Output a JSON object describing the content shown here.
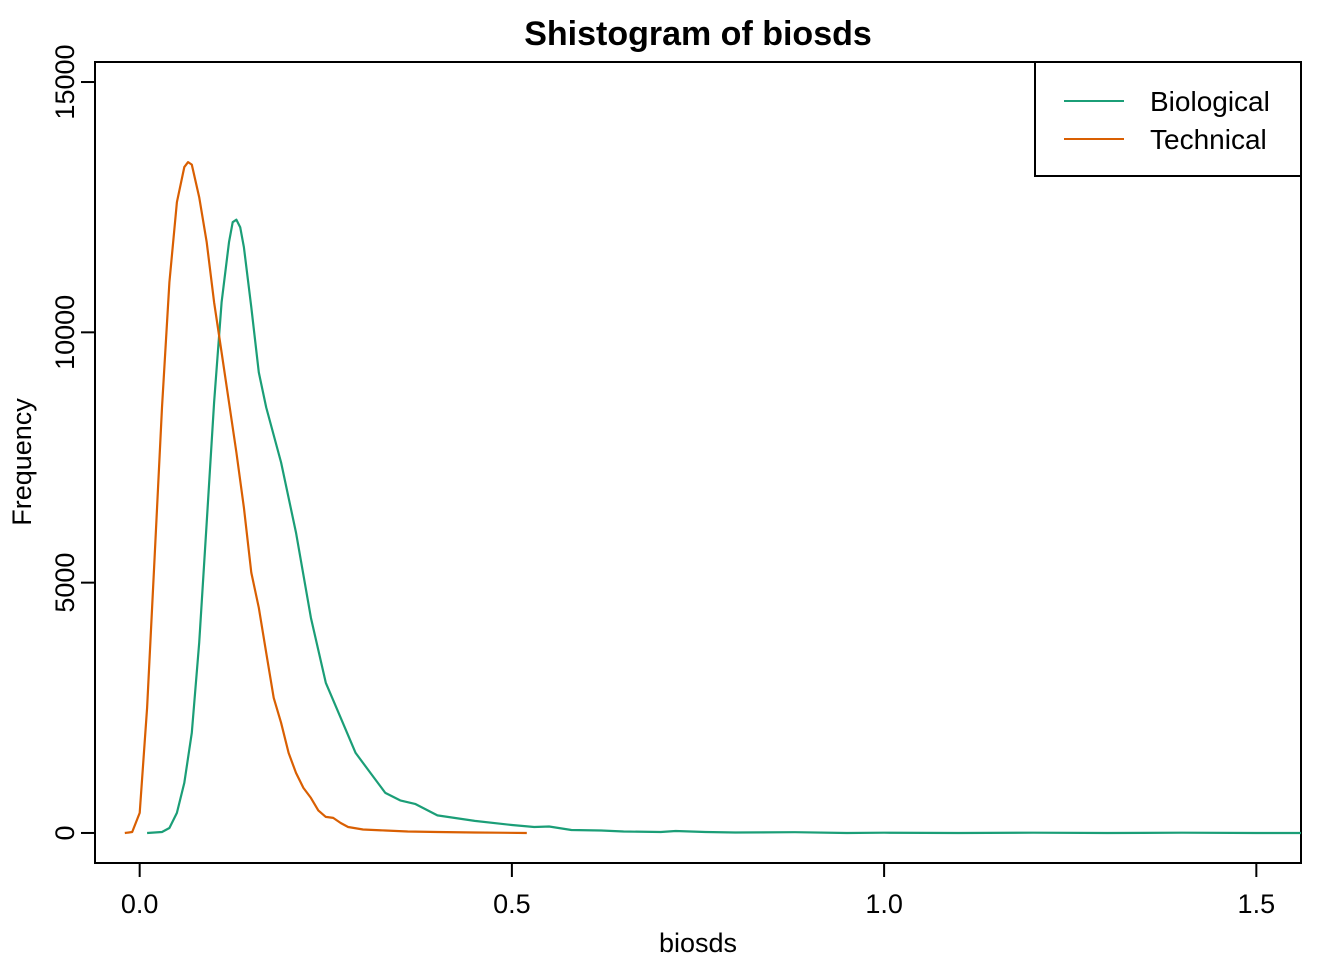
{
  "chart_data": {
    "type": "line",
    "title": "Shistogram of biosds",
    "xlabel": "biosds",
    "ylabel": "Frequency",
    "xlim": [
      -0.06,
      1.56
    ],
    "ylim": [
      -600,
      15400
    ],
    "x_ticks": [
      0.0,
      0.5,
      1.0,
      1.5
    ],
    "x_tick_labels": [
      "0.0",
      "0.5",
      "1.0",
      "1.5"
    ],
    "y_ticks": [
      0,
      5000,
      10000,
      15000
    ],
    "y_tick_labels": [
      "0",
      "5000",
      "10000",
      "15000"
    ],
    "grid": false,
    "legend": {
      "position": "top-right",
      "entries": [
        "Biological",
        "Technical"
      ]
    },
    "series": [
      {
        "name": "Biological",
        "color": "#1b9e77",
        "points": [
          [
            0.01,
            0
          ],
          [
            0.03,
            20
          ],
          [
            0.04,
            100
          ],
          [
            0.05,
            400
          ],
          [
            0.06,
            1000
          ],
          [
            0.07,
            2000
          ],
          [
            0.08,
            3800
          ],
          [
            0.09,
            6200
          ],
          [
            0.1,
            8600
          ],
          [
            0.11,
            10600
          ],
          [
            0.12,
            11800
          ],
          [
            0.125,
            12200
          ],
          [
            0.13,
            12250
          ],
          [
            0.135,
            12100
          ],
          [
            0.14,
            11700
          ],
          [
            0.15,
            10500
          ],
          [
            0.16,
            9200
          ],
          [
            0.17,
            8500
          ],
          [
            0.19,
            7400
          ],
          [
            0.21,
            6000
          ],
          [
            0.23,
            4300
          ],
          [
            0.25,
            3000
          ],
          [
            0.27,
            2300
          ],
          [
            0.29,
            1600
          ],
          [
            0.31,
            1200
          ],
          [
            0.33,
            800
          ],
          [
            0.35,
            650
          ],
          [
            0.37,
            580
          ],
          [
            0.4,
            350
          ],
          [
            0.45,
            240
          ],
          [
            0.5,
            160
          ],
          [
            0.53,
            120
          ],
          [
            0.55,
            130
          ],
          [
            0.58,
            60
          ],
          [
            0.62,
            50
          ],
          [
            0.65,
            30
          ],
          [
            0.7,
            20
          ],
          [
            0.72,
            40
          ],
          [
            0.76,
            20
          ],
          [
            0.8,
            10
          ],
          [
            0.88,
            15
          ],
          [
            0.95,
            0
          ],
          [
            1.0,
            5
          ],
          [
            1.1,
            0
          ],
          [
            1.2,
            5
          ],
          [
            1.3,
            0
          ],
          [
            1.4,
            5
          ],
          [
            1.5,
            0
          ],
          [
            1.56,
            0
          ]
        ]
      },
      {
        "name": "Technical",
        "color": "#d95f02",
        "points": [
          [
            -0.02,
            0
          ],
          [
            -0.01,
            20
          ],
          [
            0.0,
            400
          ],
          [
            0.01,
            2500
          ],
          [
            0.02,
            5500
          ],
          [
            0.03,
            8500
          ],
          [
            0.04,
            11000
          ],
          [
            0.05,
            12600
          ],
          [
            0.06,
            13300
          ],
          [
            0.065,
            13400
          ],
          [
            0.07,
            13350
          ],
          [
            0.08,
            12700
          ],
          [
            0.09,
            11800
          ],
          [
            0.1,
            10600
          ],
          [
            0.11,
            9600
          ],
          [
            0.12,
            8600
          ],
          [
            0.13,
            7600
          ],
          [
            0.14,
            6500
          ],
          [
            0.15,
            5200
          ],
          [
            0.16,
            4500
          ],
          [
            0.17,
            3600
          ],
          [
            0.18,
            2700
          ],
          [
            0.19,
            2200
          ],
          [
            0.2,
            1600
          ],
          [
            0.21,
            1200
          ],
          [
            0.22,
            900
          ],
          [
            0.23,
            700
          ],
          [
            0.24,
            450
          ],
          [
            0.25,
            320
          ],
          [
            0.26,
            300
          ],
          [
            0.27,
            200
          ],
          [
            0.28,
            120
          ],
          [
            0.3,
            70
          ],
          [
            0.33,
            50
          ],
          [
            0.36,
            30
          ],
          [
            0.4,
            20
          ],
          [
            0.45,
            10
          ],
          [
            0.48,
            5
          ],
          [
            0.52,
            0
          ]
        ]
      }
    ]
  }
}
